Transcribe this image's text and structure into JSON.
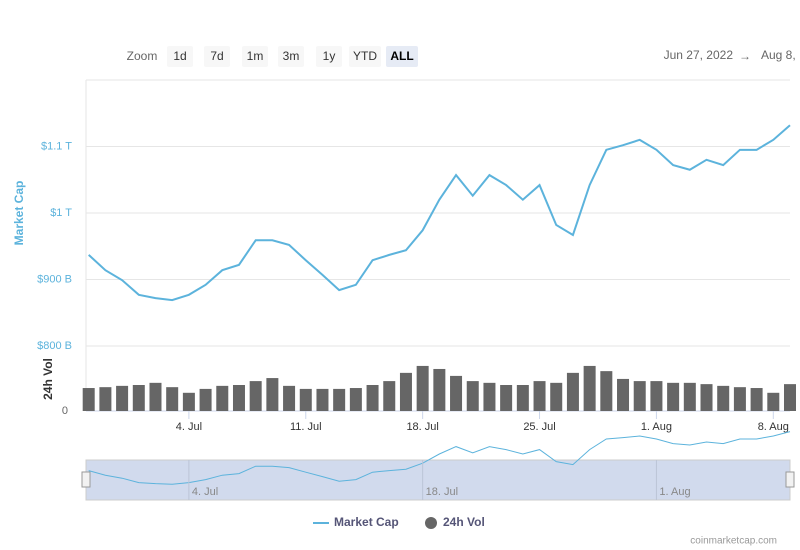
{
  "toolbar": {
    "zoom_label": "Zoom",
    "buttons": [
      "1d",
      "7d",
      "1m",
      "3m",
      "1y",
      "YTD",
      "ALL"
    ],
    "active_button": 6,
    "date_from": "Jun 27, 2022",
    "arrow": "→",
    "date_to": "Aug 8,"
  },
  "chart_data": {
    "type": "line",
    "ylabel": "Market Cap",
    "y2label": "24h Vol",
    "categories": [
      null,
      null,
      null,
      null,
      null,
      null,
      "4. Jul",
      null,
      null,
      null,
      null,
      null,
      null,
      "11. Jul",
      null,
      null,
      null,
      null,
      null,
      null,
      "18. Jul",
      null,
      null,
      null,
      null,
      null,
      null,
      "25. Jul",
      null,
      null,
      null,
      null,
      null,
      null,
      "1. Aug",
      null,
      null,
      null,
      null,
      null,
      null,
      "8. Aug",
      null
    ],
    "series": [
      {
        "name": "Market Cap",
        "color": "#5cb3dc",
        "values": [
          937,
          914,
          899,
          877,
          872,
          869,
          877,
          892,
          914,
          922,
          959,
          959,
          952,
          929,
          907,
          884,
          892,
          929,
          937,
          944,
          974,
          1020,
          1057,
          1026,
          1057,
          1042,
          1020,
          1042,
          982,
          967,
          1042,
          1095,
          1102,
          1110,
          1095,
          1072,
          1065,
          1080,
          1072,
          1095,
          1095,
          1110,
          1132
        ]
      },
      {
        "name": "24h Vol",
        "color": "#666666",
        "type": "bar",
        "axis": "y2",
        "values": [
          53,
          55,
          58,
          60,
          65,
          55,
          42,
          51,
          58,
          60,
          69,
          76,
          58,
          51,
          51,
          51,
          53,
          60,
          69,
          88,
          104,
          97,
          81,
          69,
          65,
          60,
          60,
          69,
          65,
          88,
          104,
          92,
          74,
          69,
          69,
          65,
          65,
          62,
          58,
          55,
          53,
          42,
          62
        ]
      }
    ],
    "ylim": [
      800,
      1200
    ],
    "yticks": [
      {
        "value": 800,
        "label": "$800 B"
      },
      {
        "value": 900,
        "label": "$900 B"
      },
      {
        "value": 1000,
        "label": "$1 T"
      },
      {
        "value": 1100,
        "label": "$1.1 T"
      }
    ],
    "y2lim": [
      0,
      150
    ],
    "y2ticks": [
      0
    ],
    "grid": true
  },
  "credit": "coinmarketcap.com"
}
